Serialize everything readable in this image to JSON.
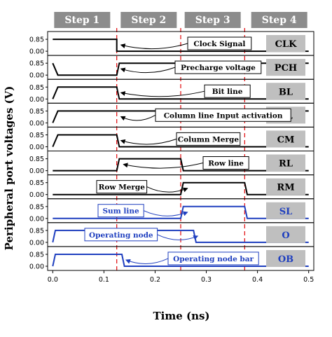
{
  "chart_data": {
    "type": "line",
    "title": "",
    "xlabel": "Time (ns)",
    "ylabel": "Peripheral port voltages (V)",
    "xlim": [
      -0.01,
      0.51
    ],
    "ylim": [
      0,
      0.85
    ],
    "x_ticks": [
      0.0,
      0.1,
      0.2,
      0.3,
      0.4,
      0.5
    ],
    "x_tick_labels": [
      "0.0",
      "0.1",
      "0.2",
      "0.3",
      "0.4",
      "0.5"
    ],
    "y_tick_labels": [
      "0.00",
      "0.85"
    ],
    "step_boundaries": [
      0.125,
      0.25,
      0.375
    ],
    "steps": [
      "Step 1",
      "Step 2",
      "Step 3",
      "Step 4"
    ],
    "colors": {
      "black_trace": "#000000",
      "blue_trace": "#1f3fbf",
      "boundary": "#e31a1c",
      "step_header": "#8c8c8c",
      "label_box": "#bfbfbf"
    },
    "series": [
      {
        "name": "CLK",
        "color": "#000000",
        "points": [
          [
            0.0,
            0.85
          ],
          [
            0.125,
            0.85
          ],
          [
            0.125,
            0.0
          ],
          [
            0.5,
            0.0
          ]
        ],
        "annotation": "Clock Signal"
      },
      {
        "name": "PCH",
        "color": "#000000",
        "points": [
          [
            0.0,
            0.85
          ],
          [
            0.01,
            0.0
          ],
          [
            0.125,
            0.0
          ],
          [
            0.13,
            0.85
          ],
          [
            0.5,
            0.85
          ]
        ],
        "annotation": "Precharge voltage"
      },
      {
        "name": "BL",
        "color": "#000000",
        "points": [
          [
            0.0,
            0.0
          ],
          [
            0.01,
            0.85
          ],
          [
            0.125,
            0.85
          ],
          [
            0.13,
            0.0
          ],
          [
            0.5,
            0.0
          ]
        ],
        "annotation": "Bit line"
      },
      {
        "name": "CL",
        "color": "#000000",
        "points": [
          [
            0.0,
            0.0
          ],
          [
            0.01,
            0.85
          ],
          [
            0.125,
            0.85
          ],
          [
            0.13,
            0.85
          ],
          [
            0.5,
            0.85
          ]
        ],
        "annotation": "Column line Input activation"
      },
      {
        "name": "CM",
        "color": "#000000",
        "points": [
          [
            0.0,
            0.0
          ],
          [
            0.01,
            0.85
          ],
          [
            0.125,
            0.85
          ],
          [
            0.13,
            0.0
          ],
          [
            0.5,
            0.0
          ]
        ],
        "annotation": "Column Merge"
      },
      {
        "name": "RL",
        "color": "#000000",
        "points": [
          [
            0.0,
            0.0
          ],
          [
            0.125,
            0.0
          ],
          [
            0.13,
            0.85
          ],
          [
            0.25,
            0.85
          ],
          [
            0.255,
            0.0
          ],
          [
            0.5,
            0.0
          ]
        ],
        "annotation": "Row line"
      },
      {
        "name": "RM",
        "color": "#000000",
        "points": [
          [
            0.0,
            0.0
          ],
          [
            0.25,
            0.0
          ],
          [
            0.255,
            0.85
          ],
          [
            0.375,
            0.85
          ],
          [
            0.38,
            0.0
          ],
          [
            0.5,
            0.0
          ]
        ],
        "annotation": "Row Merge"
      },
      {
        "name": "SL",
        "color": "#1f3fbf",
        "points": [
          [
            0.0,
            0.0
          ],
          [
            0.25,
            0.0
          ],
          [
            0.255,
            0.85
          ],
          [
            0.375,
            0.85
          ],
          [
            0.38,
            0.0
          ],
          [
            0.5,
            0.0
          ]
        ],
        "annotation": "Sum line"
      },
      {
        "name": "O",
        "color": "#1f3fbf",
        "points": [
          [
            0.0,
            0.0
          ],
          [
            0.005,
            0.85
          ],
          [
            0.275,
            0.85
          ],
          [
            0.28,
            0.0
          ],
          [
            0.5,
            0.0
          ]
        ],
        "annotation": "Operating node"
      },
      {
        "name": "OB",
        "color": "#1f3fbf",
        "points": [
          [
            0.0,
            0.0
          ],
          [
            0.005,
            0.85
          ],
          [
            0.135,
            0.85
          ],
          [
            0.14,
            0.0
          ],
          [
            0.5,
            0.0
          ]
        ],
        "annotation": "Operating node bar"
      }
    ]
  }
}
